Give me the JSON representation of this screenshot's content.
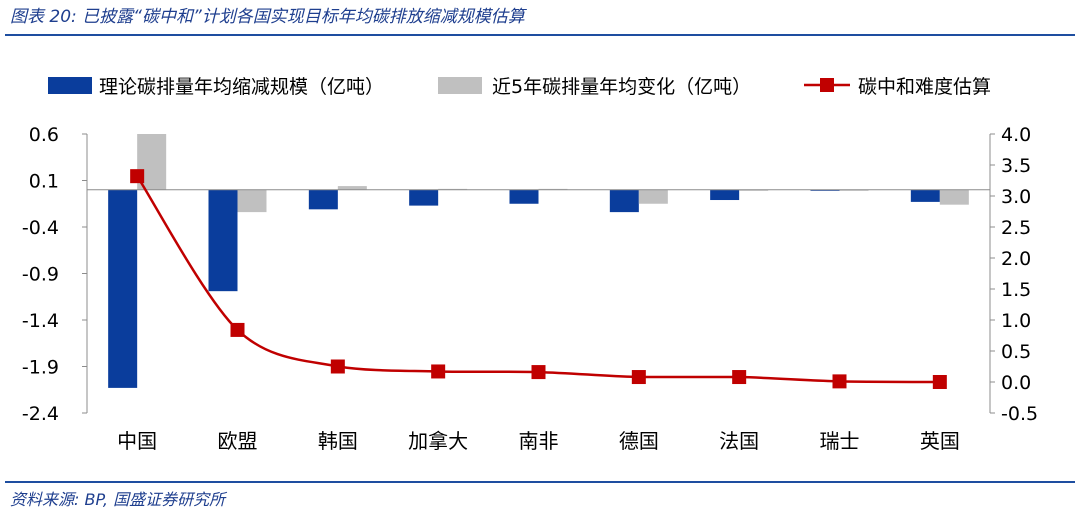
{
  "caption": "图表 20:  已披露“碳中和”计划各国实现目标年均碳排放缩减规模估算",
  "source": "资料来源:  BP,  国盛证券研究所",
  "chart_data": {
    "type": "bar",
    "categories": [
      "中国",
      "欧盟",
      "韩国",
      "加拿大",
      "南非",
      "德国",
      "法国",
      "瑞士",
      "英国"
    ],
    "series": [
      {
        "name": "理论碳排量年均缩减规模（亿吨）",
        "type": "bar",
        "axis": "left",
        "color": "#0a3d9c",
        "values": [
          -2.13,
          -1.09,
          -0.21,
          -0.17,
          -0.15,
          -0.24,
          -0.11,
          -0.01,
          -0.13
        ]
      },
      {
        "name": "近5年碳排量年均变化（亿吨）",
        "type": "bar",
        "axis": "left",
        "color": "#c0c0c0",
        "values": [
          0.6,
          -0.24,
          0.04,
          0.01,
          0.01,
          -0.15,
          0.0,
          0.0,
          -0.16
        ]
      },
      {
        "name": "碳中和难度估算",
        "type": "line",
        "axis": "right",
        "color": "#c00000",
        "values": [
          3.32,
          0.84,
          0.25,
          0.17,
          0.16,
          0.08,
          0.08,
          0.01,
          0.0
        ]
      }
    ],
    "y_left": {
      "min": -2.4,
      "max": 0.6,
      "ticks": [
        "0.6",
        "0.1",
        "-0.4",
        "-0.9",
        "-1.4",
        "-1.9",
        "-2.4"
      ]
    },
    "y_right": {
      "min": -0.5,
      "max": 4.0,
      "ticks": [
        "4.0",
        "3.5",
        "3.0",
        "2.5",
        "2.0",
        "1.5",
        "1.0",
        "0.5",
        "0.0",
        "-0.5"
      ]
    },
    "grid": false,
    "legend": "top"
  }
}
